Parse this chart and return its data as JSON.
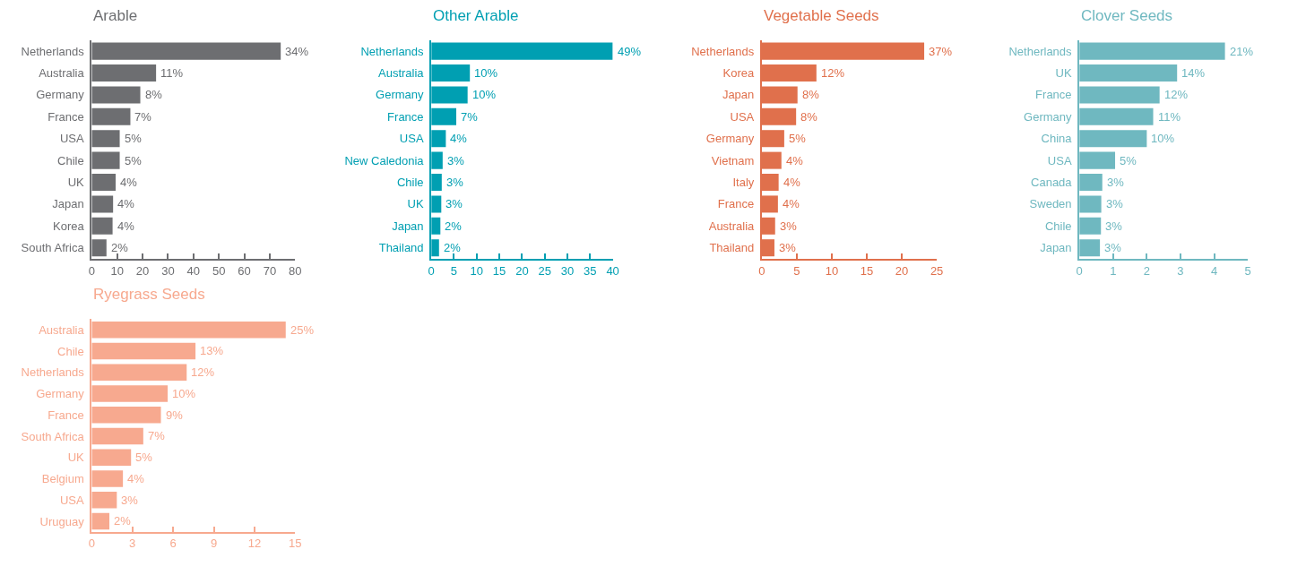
{
  "chart_data": [
    {
      "type": "bar",
      "orientation": "horizontal",
      "title": "Arable",
      "color": "#6d6e71",
      "categories": [
        "Netherlands",
        "Australia",
        "Germany",
        "France",
        "USA",
        "Chile",
        "UK",
        "Japan",
        "Korea",
        "South Africa"
      ],
      "values": [
        74.3,
        25.3,
        19.1,
        15.2,
        11.0,
        11.0,
        9.4,
        8.4,
        8.2,
        5.8
      ],
      "annotations": [
        {
          "text": "34%",
          "x": 74.3,
          "y": "Netherlands"
        },
        {
          "text": "11%",
          "x": 25.3,
          "y": "Australia"
        },
        {
          "text": "8%",
          "x": 19.1,
          "y": "Germany"
        },
        {
          "text": "7%",
          "x": 15.2,
          "y": "France"
        },
        {
          "text": "5%",
          "x": 11.0,
          "y": "USA"
        },
        {
          "text": "5%",
          "x": 11.0,
          "y": "Chile"
        },
        {
          "text": "4%",
          "x": 9.4,
          "y": "UK"
        },
        {
          "text": "4%",
          "x": 8.4,
          "y": "Japan"
        },
        {
          "text": "4%",
          "x": 8.2,
          "y": "Korea"
        },
        {
          "text": "2%",
          "x": 5.8,
          "y": "South Africa"
        }
      ],
      "xlim": [
        0,
        80
      ],
      "xticks": [
        0,
        10,
        20,
        30,
        40,
        50,
        60,
        70,
        80
      ]
    },
    {
      "type": "bar",
      "orientation": "horizontal",
      "title": "Other Arable",
      "color": "#009fb2",
      "categories": [
        "Netherlands",
        "Australia",
        "Germany",
        "France",
        "USA",
        "New Caledonia",
        "Chile",
        "UK",
        "Japan",
        "Thailand"
      ],
      "values": [
        40,
        8.5,
        8.0,
        5.5,
        3.2,
        2.5,
        2.3,
        2.2,
        2.0,
        1.7
      ],
      "annotations": [
        {
          "text": "49%",
          "x": 40,
          "y": "Netherlands"
        },
        {
          "text": "10%",
          "x": 8.5,
          "y": "Australia"
        },
        {
          "text": "10%",
          "x": 8.0,
          "y": "Germany"
        },
        {
          "text": "7%",
          "x": 5.5,
          "y": "France"
        },
        {
          "text": "4%",
          "x": 3.2,
          "y": "USA"
        },
        {
          "text": "3%",
          "x": 2.5,
          "y": "New Caledonia"
        },
        {
          "text": "3%",
          "x": 2.3,
          "y": "Chile"
        },
        {
          "text": "3%",
          "x": 2.2,
          "y": "UK"
        },
        {
          "text": "2%",
          "x": 2.0,
          "y": "Japan"
        },
        {
          "text": "2%",
          "x": 1.7,
          "y": "Thailand"
        }
      ],
      "xlim": [
        0,
        40
      ],
      "xticks": [
        0,
        5,
        10,
        15,
        20,
        25,
        30,
        35,
        40
      ]
    },
    {
      "type": "bar",
      "orientation": "horizontal",
      "title": "Vegetable Seeds",
      "color": "#e0704c",
      "categories": [
        "Netherlands",
        "Korea",
        "Japan",
        "USA",
        "Germany",
        "Vietnam",
        "Italy",
        "France",
        "Australia",
        "Thailand"
      ],
      "values": [
        23.2,
        7.8,
        5.1,
        4.9,
        3.2,
        2.8,
        2.4,
        2.3,
        1.9,
        1.8
      ],
      "annotations": [
        {
          "text": "37%",
          "x": 23.2,
          "y": "Netherlands"
        },
        {
          "text": "12%",
          "x": 7.8,
          "y": "Korea"
        },
        {
          "text": "8%",
          "x": 5.1,
          "y": "Japan"
        },
        {
          "text": "8%",
          "x": 4.9,
          "y": "USA"
        },
        {
          "text": "5%",
          "x": 3.2,
          "y": "Germany"
        },
        {
          "text": "4%",
          "x": 2.8,
          "y": "Vietnam"
        },
        {
          "text": "4%",
          "x": 2.4,
          "y": "Italy"
        },
        {
          "text": "4%",
          "x": 2.3,
          "y": "France"
        },
        {
          "text": "3%",
          "x": 1.9,
          "y": "Australia"
        },
        {
          "text": "3%",
          "x": 1.8,
          "y": "Thailand"
        }
      ],
      "xlim": [
        0,
        25
      ],
      "xticks": [
        0,
        5,
        10,
        15,
        20,
        25
      ]
    },
    {
      "type": "bar",
      "orientation": "horizontal",
      "title": "Clover Seeds",
      "color": "#6fb8c0",
      "categories": [
        "Netherlands",
        "UK",
        "France",
        "Germany",
        "China",
        "USA",
        "Canada",
        "Sweden",
        "Chile",
        "Japan"
      ],
      "values": [
        4.32,
        2.9,
        2.38,
        2.19,
        2.0,
        1.06,
        0.68,
        0.65,
        0.64,
        0.61
      ],
      "annotations": [
        {
          "text": "21%",
          "x": 4.32,
          "y": "Netherlands"
        },
        {
          "text": "14%",
          "x": 2.9,
          "y": "UK"
        },
        {
          "text": "12%",
          "x": 2.38,
          "y": "France"
        },
        {
          "text": "11%",
          "x": 2.19,
          "y": "Germany"
        },
        {
          "text": "10%",
          "x": 2.0,
          "y": "China"
        },
        {
          "text": "5%",
          "x": 1.06,
          "y": "USA"
        },
        {
          "text": "3%",
          "x": 0.68,
          "y": "Canada"
        },
        {
          "text": "3%",
          "x": 0.65,
          "y": "Sweden"
        },
        {
          "text": "3%",
          "x": 0.64,
          "y": "Chile"
        },
        {
          "text": "3%",
          "x": 0.61,
          "y": "Japan"
        }
      ],
      "xlim": [
        0,
        5
      ],
      "xticks": [
        0,
        1,
        2,
        3,
        4,
        5
      ]
    },
    {
      "type": "bar",
      "orientation": "horizontal",
      "title": "Ryegrass Seeds",
      "color": "#f7a98f",
      "categories": [
        "Australia",
        "Chile",
        "Netherlands",
        "Germany",
        "France",
        "South Africa",
        "UK",
        "Belgium",
        "USA",
        "Uruguay"
      ],
      "values": [
        14.3,
        7.65,
        7.0,
        5.6,
        5.1,
        3.8,
        2.9,
        2.3,
        1.85,
        1.3
      ],
      "annotations": [
        {
          "text": "25%",
          "x": 14.3,
          "y": "Australia"
        },
        {
          "text": "13%",
          "x": 7.65,
          "y": "Chile"
        },
        {
          "text": "12%",
          "x": 7.0,
          "y": "Netherlands"
        },
        {
          "text": "10%",
          "x": 5.6,
          "y": "Germany"
        },
        {
          "text": "9%",
          "x": 5.1,
          "y": "France"
        },
        {
          "text": "7%",
          "x": 3.8,
          "y": "South Africa"
        },
        {
          "text": "5%",
          "x": 2.9,
          "y": "UK"
        },
        {
          "text": "4%",
          "x": 2.3,
          "y": "Belgium"
        },
        {
          "text": "3%",
          "x": 1.85,
          "y": "USA"
        },
        {
          "text": "2%",
          "x": 1.3,
          "y": "Uruguay"
        }
      ],
      "xlim": [
        0,
        15
      ],
      "xticks": [
        0,
        3,
        6,
        9,
        12,
        15
      ]
    }
  ]
}
